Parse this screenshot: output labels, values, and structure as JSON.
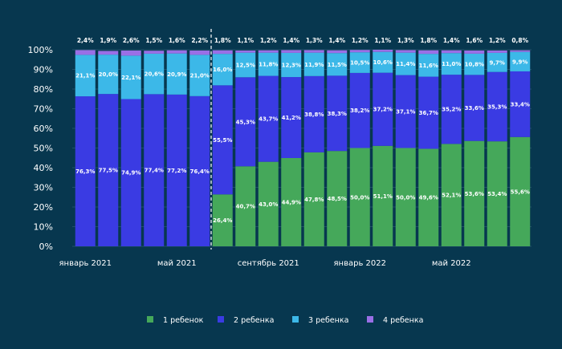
{
  "chart_data": {
    "type": "bar",
    "stacked": true,
    "ylim": [
      0,
      100
    ],
    "yticks": [
      "0%",
      "10%",
      "20%",
      "30%",
      "40%",
      "50%",
      "60%",
      "70%",
      "80%",
      "90%",
      "100%"
    ],
    "x_tick_labels": [
      {
        "index": 0,
        "label": "январь 2021"
      },
      {
        "index": 4,
        "label": "май 2021"
      },
      {
        "index": 8,
        "label": "сентябрь 2021"
      },
      {
        "index": 12,
        "label": "январь 2022"
      },
      {
        "index": 16,
        "label": "май 2022"
      }
    ],
    "divider_after_index": 5,
    "legend_position": "bottom",
    "series": [
      {
        "name": "1 ребенок",
        "color": "#45a85a",
        "values": [
          0,
          0,
          0,
          0,
          0,
          0,
          26.4,
          40.7,
          43.0,
          44.9,
          47.8,
          48.5,
          50.0,
          51.1,
          50.0,
          49.6,
          52.1,
          53.6,
          53.4,
          55.6
        ],
        "labels": [
          "",
          "",
          "",
          "",
          "",
          "",
          "26,4%",
          "40,7%",
          "43,0%",
          "44,9%",
          "47,8%",
          "48,5%",
          "50,0%",
          "51,1%",
          "50,0%",
          "49,6%",
          "52,1%",
          "53,6%",
          "53,4%",
          "55,6%"
        ]
      },
      {
        "name": "2 ребенка",
        "color": "#3a3be3",
        "values": [
          76.3,
          77.5,
          74.9,
          77.4,
          77.2,
          76.4,
          55.5,
          45.3,
          43.7,
          41.2,
          38.8,
          38.3,
          38.2,
          37.2,
          37.1,
          36.7,
          35.2,
          33.6,
          35.3,
          33.4
        ],
        "labels": [
          "76,3%",
          "77,5%",
          "74,9%",
          "77,4%",
          "77,2%",
          "76,4%",
          "55,5%",
          "45,3%",
          "43,7%",
          "41,2%",
          "38,8%",
          "38,3%",
          "38,2%",
          "37,2%",
          "37,1%",
          "36,7%",
          "35,2%",
          "33,6%",
          "35,3%",
          "33,4%"
        ]
      },
      {
        "name": "3 ребенка",
        "color": "#3cb8e8",
        "values": [
          21.1,
          20.0,
          22.1,
          20.6,
          20.9,
          21.0,
          16.0,
          12.5,
          11.8,
          12.3,
          11.9,
          11.5,
          10.5,
          10.6,
          11.4,
          11.6,
          11.0,
          10.8,
          9.7,
          9.9
        ],
        "labels": [
          "21,1%",
          "20,0%",
          "22,1%",
          "20,6%",
          "20,9%",
          "21,0%",
          "16,0%",
          "12,5%",
          "11,8%",
          "12,3%",
          "11,9%",
          "11,5%",
          "10,5%",
          "10,6%",
          "11,4%",
          "11,6%",
          "11,0%",
          "10,8%",
          "9,7%",
          "9,9%"
        ]
      },
      {
        "name": "4 ребенка",
        "color": "#9a6fe6",
        "values": [
          2.4,
          1.9,
          2.6,
          1.5,
          1.6,
          2.2,
          1.8,
          1.1,
          1.2,
          1.4,
          1.3,
          1.4,
          1.2,
          1.1,
          1.3,
          1.8,
          1.4,
          1.6,
          1.2,
          0.8
        ],
        "labels": [
          "2,4%",
          "1,9%",
          "2,6%",
          "1,5%",
          "1,6%",
          "2,2%",
          "1,8%",
          "1,1%",
          "1,2%",
          "1,4%",
          "1,3%",
          "1,4%",
          "1,2%",
          "1,1%",
          "1,3%",
          "1,8%",
          "1,4%",
          "1,6%",
          "1,2%",
          "0,8%"
        ]
      }
    ]
  }
}
